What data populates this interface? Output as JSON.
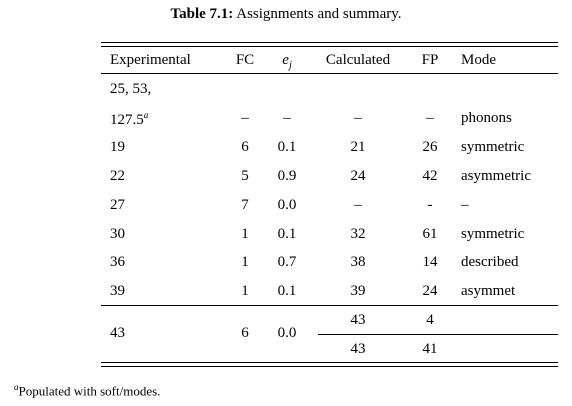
{
  "caption": {
    "number": "Table 7.1:",
    "text": "Assignments and summary."
  },
  "headers": {
    "experimental": "Experimental",
    "fc": "FC",
    "ej_base": "e",
    "ej_sub": "j",
    "calculated": "Calculated",
    "fp": "FP",
    "mode": "Mode"
  },
  "rows": [
    {
      "experimental": "25, 53,",
      "fc": "",
      "ej": "",
      "calculated": "",
      "fp": "",
      "mode": ""
    },
    {
      "experimental": "127.5",
      "exp_sup": "a",
      "fc": "–",
      "ej": "–",
      "calculated": "–",
      "fp": "–",
      "mode": "phonons"
    },
    {
      "experimental": "19",
      "fc": "6",
      "ej": "0.1",
      "calculated": "21",
      "fp": "26",
      "mode": "symmetric"
    },
    {
      "experimental": "22",
      "fc": "5",
      "ej": "0.9",
      "calculated": "24",
      "fp": "42",
      "mode": "asymmetric"
    },
    {
      "experimental": "27",
      "fc": "7",
      "ej": "0.0",
      "calculated": "–",
      "fp": "-",
      "mode": "–"
    },
    {
      "experimental": "30",
      "fc": "1",
      "ej": "0.1",
      "calculated": "32",
      "fp": "61",
      "mode": "symmetric"
    },
    {
      "experimental": "36",
      "fc": "1",
      "ej": "0.7",
      "calculated": "38",
      "fp": "14",
      "mode": "described"
    },
    {
      "experimental": "39",
      "fc": "1",
      "ej": "0.1",
      "calculated": "39",
      "fp": "24",
      "mode": "asymmet"
    }
  ],
  "last_group": {
    "experimental": "43",
    "fc": "6",
    "ej": "0.0",
    "sub_rows": [
      {
        "calculated": "43",
        "fp": "4",
        "mode": ""
      },
      {
        "calculated": "43",
        "fp": "41",
        "mode": ""
      }
    ]
  },
  "footnote": {
    "mark": "a",
    "text": "Populated with soft/modes."
  }
}
